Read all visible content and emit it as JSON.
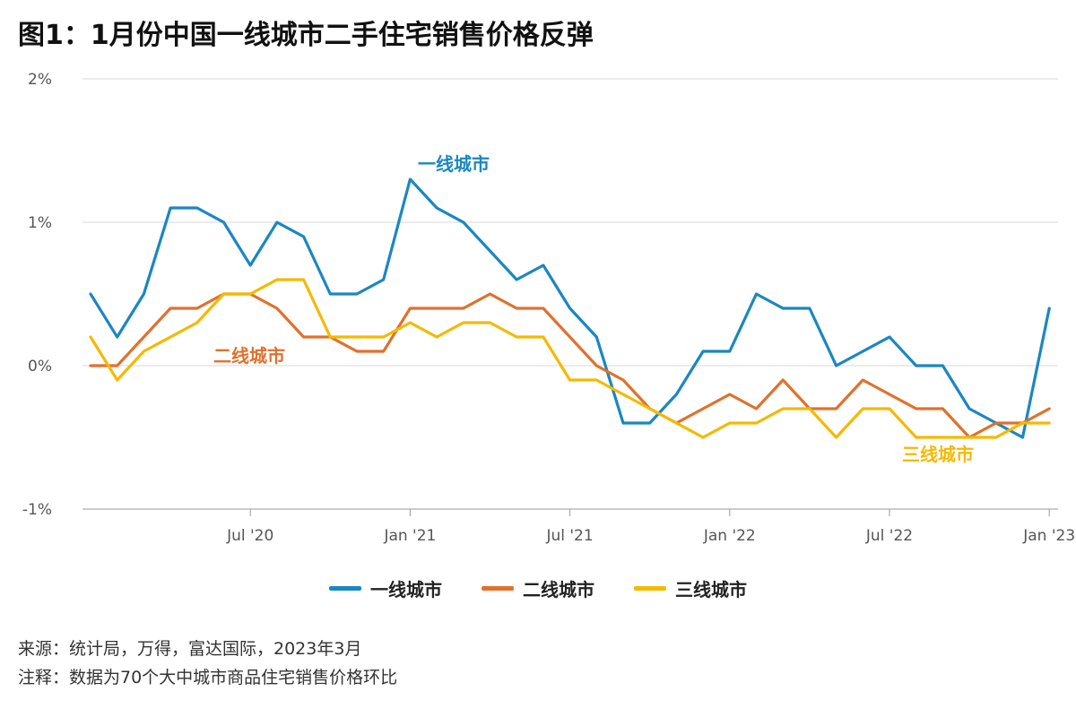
{
  "header": {
    "title": "图1：1月份中国一线城市二手住宅销售价格反弹"
  },
  "chart_data": {
    "type": "line",
    "title": "图1：1月份中国一线城市二手住宅销售价格反弹",
    "ylim": [
      -1,
      2
    ],
    "y_ticks": [
      2,
      1,
      0,
      -1
    ],
    "y_tick_labels": [
      "2%",
      "1%",
      "0%",
      "-1%"
    ],
    "x_tick_labels": [
      "Jul '20",
      "Jan '21",
      "Jul '21",
      "Jan '22",
      "Jul '22",
      "Jan '23"
    ],
    "x": [
      "2020-01",
      "2020-02",
      "2020-03",
      "2020-04",
      "2020-05",
      "2020-06",
      "2020-07",
      "2020-08",
      "2020-09",
      "2020-10",
      "2020-11",
      "2020-12",
      "2021-01",
      "2021-02",
      "2021-03",
      "2021-04",
      "2021-05",
      "2021-06",
      "2021-07",
      "2021-08",
      "2021-09",
      "2021-10",
      "2021-11",
      "2021-12",
      "2022-01",
      "2022-02",
      "2022-03",
      "2022-04",
      "2022-05",
      "2022-06",
      "2022-07",
      "2022-08",
      "2022-09",
      "2022-10",
      "2022-11",
      "2022-12",
      "2023-01"
    ],
    "grid": true,
    "legend_position": "bottom",
    "series": [
      {
        "name": "一线城市",
        "color": "#1a87c2",
        "values": [
          0.5,
          0.2,
          0.5,
          1.1,
          1.1,
          1.0,
          0.7,
          1.0,
          0.9,
          0.5,
          0.5,
          0.6,
          1.3,
          1.1,
          1.0,
          0.8,
          0.6,
          0.7,
          0.4,
          0.2,
          -0.4,
          -0.4,
          -0.2,
          0.1,
          0.1,
          0.5,
          0.4,
          0.4,
          0.0,
          0.1,
          0.2,
          0.0,
          0.0,
          -0.3,
          -0.4,
          -0.5,
          0.4
        ]
      },
      {
        "name": "二线城市",
        "color": "#e0712c",
        "values": [
          0.0,
          0.0,
          0.2,
          0.4,
          0.4,
          0.5,
          0.5,
          0.4,
          0.2,
          0.2,
          0.1,
          0.1,
          0.4,
          0.4,
          0.4,
          0.5,
          0.4,
          0.4,
          0.2,
          0.0,
          -0.1,
          -0.3,
          -0.4,
          -0.3,
          -0.2,
          -0.3,
          -0.1,
          -0.3,
          -0.3,
          -0.1,
          -0.2,
          -0.3,
          -0.3,
          -0.5,
          -0.4,
          -0.4,
          -0.3
        ]
      },
      {
        "name": "三线城市",
        "color": "#f5b900",
        "values": [
          0.2,
          -0.1,
          0.1,
          0.2,
          0.3,
          0.5,
          0.5,
          0.6,
          0.6,
          0.2,
          0.2,
          0.2,
          0.3,
          0.2,
          0.3,
          0.3,
          0.2,
          0.2,
          -0.1,
          -0.1,
          -0.2,
          -0.3,
          -0.4,
          -0.5,
          -0.4,
          -0.4,
          -0.3,
          -0.3,
          -0.5,
          -0.3,
          -0.3,
          -0.5,
          -0.5,
          -0.5,
          -0.5,
          -0.4,
          -0.4
        ]
      }
    ],
    "annotations": [
      {
        "text": "一线城市",
        "series": 0
      },
      {
        "text": "二线城市",
        "series": 1
      },
      {
        "text": "三线城市",
        "series": 2
      }
    ]
  },
  "footer": {
    "source": "来源：统计局，万得，富达国际，2023年3月",
    "note": "注释：数据为70个大中城市商品住宅销售价格环比"
  }
}
